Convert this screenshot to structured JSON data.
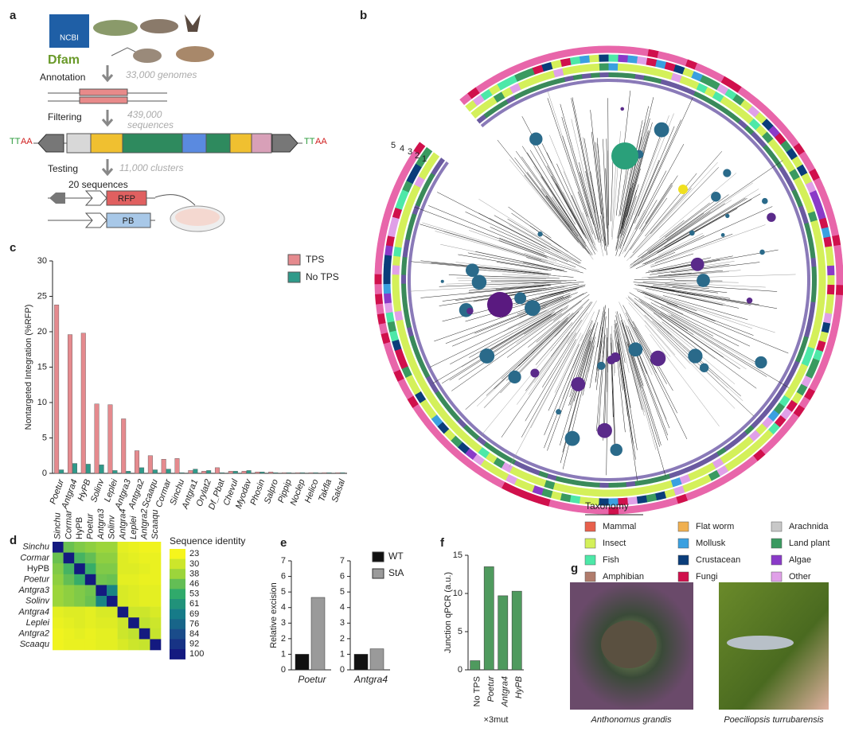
{
  "panel_labels": [
    "a",
    "b",
    "c",
    "d",
    "e",
    "f",
    "g"
  ],
  "diagram": {
    "sources": [
      "NCBI",
      "Dfam"
    ],
    "steps": [
      {
        "label": "Annotation",
        "lines": [
          "33,000 genomes"
        ]
      },
      {
        "label": "Filtering",
        "lines": [
          "439,000",
          "sequences"
        ]
      },
      {
        "label": "Testing",
        "lines": [
          "11,000 clusters"
        ]
      }
    ],
    "site": [
      "TT",
      "AA"
    ],
    "tested": "20 sequences",
    "constructs": [
      "RFP",
      "PB"
    ]
  },
  "tree": {
    "ring_labels": [
      "5",
      "4",
      "3",
      "2",
      "1"
    ],
    "legend_title": "Taxonomy",
    "taxa": [
      {
        "name": "Mammal",
        "color": "#e8604c"
      },
      {
        "name": "Insect",
        "color": "#d4f05a"
      },
      {
        "name": "Fish",
        "color": "#4de8a8"
      },
      {
        "name": "Amphibian",
        "color": "#b07c6c"
      },
      {
        "name": "Flat worm",
        "color": "#f0b050"
      },
      {
        "name": "Mollusk",
        "color": "#3aa0e0"
      },
      {
        "name": "Crustacean",
        "color": "#0a3d7a"
      },
      {
        "name": "Fungi",
        "color": "#d0104c"
      },
      {
        "name": "Arachnida",
        "color": "#c8c8c8"
      },
      {
        "name": "Land plant",
        "color": "#3a9a60"
      },
      {
        "name": "Algae",
        "color": "#8a3ac8"
      },
      {
        "name": "Other",
        "color": "#e0a0e8"
      }
    ]
  },
  "chart_data": [
    {
      "type": "bar",
      "ylabel": "Nontargeted Integration (%RFP)",
      "categories": [
        "Poetur",
        "Antgra4",
        "HyPB",
        "Solinv",
        "Leplei",
        "Antgra3",
        "Antgra2",
        "Scaaqu",
        "Cormar",
        "Sinchu",
        "Antgra1",
        "Orylat2",
        "Df_Pbat",
        "Chevul",
        "Myodav",
        "Phosin",
        "Salpro",
        "Pippip",
        "Noclep",
        "Helico",
        "Takfla",
        "Salsal"
      ],
      "series": [
        {
          "name": "TPS",
          "color": "#e58a8e",
          "values": [
            23.8,
            19.6,
            19.8,
            9.8,
            9.7,
            7.7,
            3.2,
            2.5,
            2.0,
            2.1,
            0.4,
            0.3,
            0.8,
            0.3,
            0.3,
            0.2,
            0.2,
            0.1,
            0.1,
            0.1,
            0.1,
            0.1
          ]
        },
        {
          "name": "No TPS",
          "color": "#2f9a8a",
          "values": [
            0.5,
            1.4,
            1.3,
            1.2,
            0.4,
            0.3,
            0.8,
            0.5,
            0.6,
            0.1,
            0.6,
            0.4,
            0.1,
            0.3,
            0.4,
            0.2,
            0.1,
            0.1,
            0.1,
            0.1,
            0.1,
            0.1
          ]
        }
      ],
      "ylim": [
        0,
        30
      ],
      "yticks": [
        0,
        5,
        10,
        15,
        20,
        25,
        30
      ]
    },
    {
      "type": "heatmap",
      "colorbar_title": "Sequence identity",
      "labels": [
        "Sinchu",
        "Cormar",
        "HyPB",
        "Poetur",
        "Antgra3",
        "Solinv",
        "Antgra4",
        "Leplei",
        "Antgra2",
        "Scaaqu"
      ],
      "values": [
        [
          100,
          45,
          42,
          40,
          38,
          38,
          26,
          25,
          24,
          24
        ],
        [
          45,
          100,
          50,
          46,
          40,
          40,
          27,
          26,
          25,
          25
        ],
        [
          42,
          50,
          100,
          52,
          42,
          42,
          27,
          27,
          26,
          25
        ],
        [
          40,
          46,
          52,
          100,
          44,
          45,
          26,
          26,
          25,
          25
        ],
        [
          38,
          40,
          42,
          44,
          100,
          66,
          28,
          27,
          26,
          26
        ],
        [
          38,
          40,
          42,
          45,
          66,
          100,
          28,
          27,
          26,
          26
        ],
        [
          26,
          27,
          27,
          26,
          28,
          28,
          100,
          30,
          30,
          28
        ],
        [
          25,
          26,
          27,
          26,
          27,
          27,
          30,
          100,
          32,
          30
        ],
        [
          24,
          25,
          26,
          25,
          26,
          26,
          30,
          32,
          100,
          31
        ],
        [
          24,
          25,
          25,
          25,
          26,
          26,
          28,
          30,
          31,
          100
        ]
      ],
      "colormap": [
        "#f6f51c",
        "#9ad43c",
        "#2aa86e",
        "#167a88",
        "#1a4a8a",
        "#141a80"
      ],
      "clim": [
        23,
        100
      ],
      "cticks": [
        23,
        30,
        38,
        46,
        53,
        61,
        69,
        76,
        84,
        92,
        100
      ]
    },
    {
      "type": "grouped_bar",
      "ylabel": "Relative excision",
      "categories": [
        "Poetur",
        "Antgra4"
      ],
      "series": [
        {
          "name": "WT",
          "color": "#111111",
          "values": [
            1,
            1
          ]
        },
        {
          "name": "StA",
          "color": "#9a9a9a",
          "values": [
            4.65,
            1.35
          ]
        }
      ],
      "ylim": [
        0,
        7
      ],
      "yticks": [
        0,
        1,
        2,
        3,
        4,
        5,
        6,
        7
      ]
    },
    {
      "type": "bar",
      "ylabel": "Junction qPCR (a.u.)",
      "xlabel": "×3mut",
      "categories": [
        "No TPS",
        "Poetur",
        "Antgra4",
        "HyPB"
      ],
      "color": "#4f9a5e",
      "values": [
        1.2,
        13.5,
        9.7,
        10.3
      ],
      "ylim": [
        0,
        15
      ],
      "yticks": [
        0,
        5,
        10,
        15
      ]
    }
  ],
  "photos": {
    "captions": [
      "Anthonomus grandis",
      "Poeciliopsis turrubarensis"
    ]
  }
}
